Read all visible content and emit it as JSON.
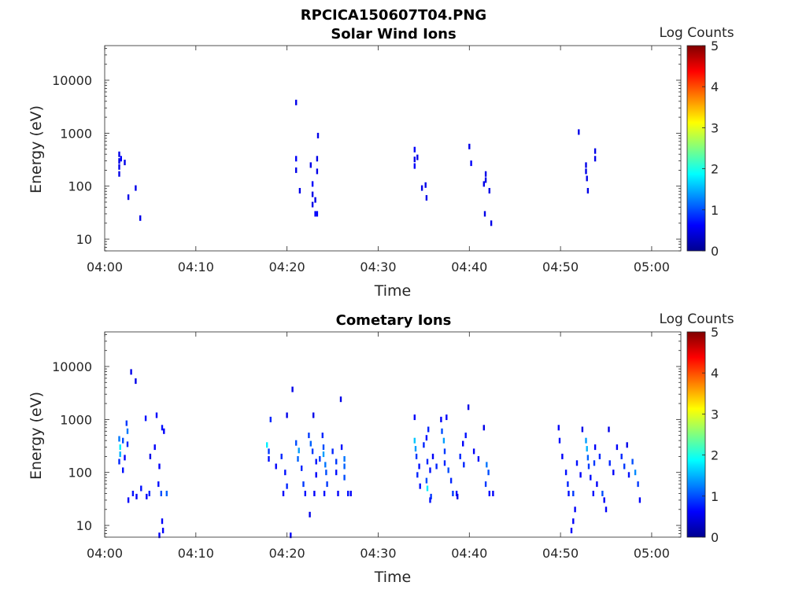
{
  "figure_title": "RPCICA150607T04.PNG",
  "colors": {
    "colormap": [
      "#00008f",
      "#0000ff",
      "#0080ff",
      "#00ffff",
      "#80ff80",
      "#ffff00",
      "#ff8000",
      "#ff0000",
      "#800000"
    ],
    "axis": "#262626"
  },
  "chart_data": [
    {
      "type": "heatmap",
      "title": "Solar Wind Ions",
      "xlabel": "Time",
      "ylabel": "Energy (eV)",
      "yscale": "log",
      "ylim": [
        6,
        45000
      ],
      "xticks": [
        "04:00",
        "04:10",
        "04:20",
        "04:30",
        "04:40",
        "04:50",
        "05:00"
      ],
      "yticks": [
        "10",
        "100",
        "1000",
        "10000"
      ],
      "colorbar": {
        "label": "Log Counts",
        "range": [
          0,
          5
        ],
        "ticks": [
          "0",
          "1",
          "2",
          "3",
          "4",
          "5"
        ]
      },
      "series": [
        {
          "values": [
            [
              1.6,
              400,
              0.5
            ],
            [
              1.6,
              300,
              0.5
            ],
            [
              1.6,
              230,
              0.5
            ],
            [
              1.6,
              170,
              0.5
            ],
            [
              1.8,
              330,
              0.6
            ],
            [
              2.2,
              280,
              0.5
            ],
            [
              2.6,
              62,
              0.5
            ],
            [
              3.4,
              92,
              0.5
            ],
            [
              3.9,
              25,
              0.5
            ],
            [
              21.0,
              3800,
              0.5
            ],
            [
              21.0,
              330,
              0.6
            ],
            [
              21.0,
              200,
              0.5
            ],
            [
              21.4,
              82,
              0.5
            ],
            [
              22.6,
              250,
              0.5
            ],
            [
              22.8,
              110,
              0.6
            ],
            [
              22.8,
              70,
              0.5
            ],
            [
              22.8,
              45,
              0.5
            ],
            [
              23.1,
              55,
              0.5
            ],
            [
              23.1,
              30,
              0.6
            ],
            [
              23.3,
              30,
              0.6
            ],
            [
              23.3,
              190,
              0.5
            ],
            [
              23.3,
              330,
              0.5
            ],
            [
              23.4,
              900,
              0.5
            ],
            [
              34.0,
              490,
              0.6
            ],
            [
              34.0,
              320,
              0.5
            ],
            [
              34.0,
              240,
              0.6
            ],
            [
              34.3,
              350,
              0.5
            ],
            [
              34.8,
              92,
              0.5
            ],
            [
              35.2,
              105,
              0.5
            ],
            [
              35.3,
              60,
              0.5
            ],
            [
              40.0,
              560,
              0.5
            ],
            [
              40.2,
              270,
              0.6
            ],
            [
              41.6,
              110,
              0.5
            ],
            [
              41.8,
              170,
              0.5
            ],
            [
              41.8,
              130,
              0.5
            ],
            [
              41.7,
              30,
              0.5
            ],
            [
              42.2,
              82,
              0.5
            ],
            [
              42.4,
              20,
              0.5
            ],
            [
              52.0,
              1050,
              0.5
            ],
            [
              52.8,
              250,
              0.5
            ],
            [
              52.8,
              190,
              0.5
            ],
            [
              52.9,
              140,
              0.5
            ],
            [
              53.0,
              82,
              0.5
            ],
            [
              53.8,
              460,
              0.5
            ],
            [
              53.8,
              330,
              0.5
            ]
          ]
        }
      ]
    },
    {
      "type": "heatmap",
      "title": "Cometary Ions",
      "xlabel": "Time",
      "ylabel": "Energy (eV)",
      "yscale": "log",
      "ylim": [
        6,
        45000
      ],
      "xticks": [
        "04:00",
        "04:10",
        "04:20",
        "04:30",
        "04:40",
        "04:50",
        "05:00"
      ],
      "yticks": [
        "10",
        "100",
        "1000",
        "10000"
      ],
      "colorbar": {
        "label": "Log Counts",
        "range": [
          0,
          5
        ],
        "ticks": [
          "0",
          "1",
          "2",
          "3",
          "4",
          "5"
        ]
      },
      "series": [
        {
          "values": [
            [
              2.9,
              7900,
              0.5
            ],
            [
              3.4,
              5300,
              0.5
            ],
            [
              1.6,
              430,
              1.2
            ],
            [
              1.7,
              300,
              1.8
            ],
            [
              1.7,
              220,
              1.5
            ],
            [
              1.6,
              160,
              0.8
            ],
            [
              2.0,
              400,
              1.0
            ],
            [
              2.4,
              850,
              0.9
            ],
            [
              2.5,
              600,
              1.2
            ],
            [
              2.5,
              340,
              0.8
            ],
            [
              2.0,
              110,
              0.7
            ],
            [
              2.2,
              190,
              0.6
            ],
            [
              2.6,
              30,
              0.6
            ],
            [
              3.1,
              40,
              0.7
            ],
            [
              3.5,
              35,
              0.6
            ],
            [
              4.0,
              50,
              0.7
            ],
            [
              4.6,
              35,
              0.6
            ],
            [
              4.9,
              40,
              0.8
            ],
            [
              4.5,
              1050,
              0.7
            ],
            [
              5.7,
              1200,
              0.6
            ],
            [
              6.3,
              700,
              0.7
            ],
            [
              6.5,
              600,
              0.6
            ],
            [
              5.5,
              300,
              0.6
            ],
            [
              5.0,
              200,
              0.5
            ],
            [
              6.0,
              130,
              0.6
            ],
            [
              5.9,
              60,
              0.7
            ],
            [
              6.2,
              40,
              1.0
            ],
            [
              6.8,
              40,
              1.1
            ],
            [
              6.3,
              12,
              0.6
            ],
            [
              6.4,
              8,
              0.6
            ],
            [
              6.0,
              6.5,
              0.6
            ],
            [
              17.8,
              330,
              1.8
            ],
            [
              18.0,
              250,
              0.9
            ],
            [
              18.2,
              1000,
              0.8
            ],
            [
              18.0,
              180,
              0.7
            ],
            [
              18.8,
              130,
              0.6
            ],
            [
              19.4,
              200,
              0.8
            ],
            [
              19.8,
              100,
              0.7
            ],
            [
              20.0,
              55,
              0.8
            ],
            [
              19.6,
              40,
              0.6
            ],
            [
              20.6,
              3700,
              0.5
            ],
            [
              20.0,
              1200,
              0.5
            ],
            [
              21.0,
              360,
              1.0
            ],
            [
              21.3,
              260,
              1.4
            ],
            [
              21.2,
              180,
              1.1
            ],
            [
              21.6,
              120,
              0.8
            ],
            [
              21.8,
              60,
              0.9
            ],
            [
              22.0,
              40,
              0.7
            ],
            [
              22.4,
              500,
              0.9
            ],
            [
              22.6,
              350,
              1.1
            ],
            [
              22.8,
              250,
              0.9
            ],
            [
              22.9,
              1200,
              0.5
            ],
            [
              23.2,
              160,
              0.7
            ],
            [
              23.2,
              90,
              0.6
            ],
            [
              23.6,
              180,
              0.9
            ],
            [
              23.9,
              500,
              0.8
            ],
            [
              24.0,
              300,
              1.0
            ],
            [
              24.0,
              220,
              1.4
            ],
            [
              24.2,
              140,
              1.2
            ],
            [
              24.3,
              100,
              1.0
            ],
            [
              24.4,
              60,
              0.9
            ],
            [
              24.1,
              40,
              0.7
            ],
            [
              23.0,
              40,
              0.6
            ],
            [
              25.0,
              250,
              0.8
            ],
            [
              25.4,
              160,
              0.9
            ],
            [
              25.4,
              100,
              0.7
            ],
            [
              25.6,
              40,
              0.6
            ],
            [
              25.9,
              2400,
              0.5
            ],
            [
              26.0,
              300,
              0.7
            ],
            [
              26.3,
              180,
              1.2
            ],
            [
              26.3,
              130,
              1.1
            ],
            [
              26.3,
              80,
              1.0
            ],
            [
              26.7,
              40,
              0.7
            ],
            [
              27.0,
              40,
              0.6
            ],
            [
              22.5,
              16,
              0.5
            ],
            [
              20.4,
              6.5,
              0.6
            ],
            [
              34.0,
              1100,
              0.6
            ],
            [
              34.0,
              400,
              1.6
            ],
            [
              34.1,
              280,
              1.4
            ],
            [
              34.2,
              200,
              0.9
            ],
            [
              34.5,
              130,
              0.7
            ],
            [
              34.3,
              90,
              0.8
            ],
            [
              34.6,
              55,
              0.7
            ],
            [
              35.0,
              330,
              0.8
            ],
            [
              35.3,
              450,
              0.7
            ],
            [
              35.5,
              650,
              0.8
            ],
            [
              35.4,
              160,
              0.8
            ],
            [
              35.7,
              110,
              0.7
            ],
            [
              35.3,
              70,
              1.0
            ],
            [
              35.4,
              50,
              1.8
            ],
            [
              35.8,
              35,
              0.9
            ],
            [
              35.7,
              30,
              0.7
            ],
            [
              36.0,
              200,
              0.6
            ],
            [
              36.4,
              130,
              0.8
            ],
            [
              36.9,
              1000,
              0.6
            ],
            [
              37.0,
              600,
              1.0
            ],
            [
              37.2,
              400,
              1.4
            ],
            [
              37.3,
              250,
              0.9
            ],
            [
              37.3,
              150,
              0.8
            ],
            [
              37.5,
              1100,
              0.6
            ],
            [
              37.7,
              110,
              1.0
            ],
            [
              38.0,
              70,
              0.8
            ],
            [
              38.2,
              40,
              0.9
            ],
            [
              38.6,
              40,
              0.7
            ],
            [
              39.0,
              200,
              0.8
            ],
            [
              39.3,
              350,
              0.6
            ],
            [
              39.6,
              500,
              0.7
            ],
            [
              39.4,
              140,
              0.8
            ],
            [
              39.9,
              1700,
              0.5
            ],
            [
              40.5,
              250,
              0.6
            ],
            [
              41.0,
              180,
              0.7
            ],
            [
              41.6,
              700,
              0.5
            ],
            [
              41.9,
              140,
              1.2
            ],
            [
              42.1,
              100,
              1.0
            ],
            [
              41.8,
              60,
              0.9
            ],
            [
              42.2,
              40,
              0.7
            ],
            [
              42.6,
              40,
              0.6
            ],
            [
              38.7,
              35,
              0.5
            ],
            [
              49.8,
              700,
              0.6
            ],
            [
              49.9,
              400,
              0.7
            ],
            [
              50.2,
              200,
              0.6
            ],
            [
              50.6,
              100,
              0.7
            ],
            [
              50.8,
              60,
              0.8
            ],
            [
              50.9,
              40,
              0.7
            ],
            [
              51.4,
              40,
              0.9
            ],
            [
              51.6,
              20,
              0.6
            ],
            [
              51.4,
              12,
              0.6
            ],
            [
              51.2,
              8,
              0.6
            ],
            [
              51.8,
              150,
              0.7
            ],
            [
              52.2,
              90,
              0.6
            ],
            [
              52.4,
              650,
              0.5
            ],
            [
              52.8,
              400,
              1.4
            ],
            [
              52.9,
              280,
              1.5
            ],
            [
              53.0,
              190,
              1.1
            ],
            [
              53.1,
              130,
              0.9
            ],
            [
              53.3,
              80,
              0.7
            ],
            [
              53.7,
              150,
              0.9
            ],
            [
              53.8,
              300,
              0.6
            ],
            [
              54.0,
              60,
              0.6
            ],
            [
              53.6,
              40,
              0.7
            ],
            [
              54.3,
              200,
              0.8
            ],
            [
              54.6,
              40,
              1.0
            ],
            [
              54.8,
              30,
              0.6
            ],
            [
              55.3,
              650,
              0.5
            ],
            [
              55.4,
              150,
              0.8
            ],
            [
              55.8,
              100,
              0.6
            ],
            [
              56.2,
              300,
              0.6
            ],
            [
              56.7,
              200,
              0.8
            ],
            [
              57.0,
              130,
              0.9
            ],
            [
              57.5,
              90,
              0.7
            ],
            [
              57.3,
              330,
              0.5
            ],
            [
              57.9,
              160,
              1.0
            ],
            [
              58.2,
              100,
              1.3
            ],
            [
              58.5,
              60,
              0.9
            ],
            [
              58.7,
              30,
              0.6
            ],
            [
              55.0,
              20,
              0.6
            ]
          ]
        }
      ]
    }
  ]
}
